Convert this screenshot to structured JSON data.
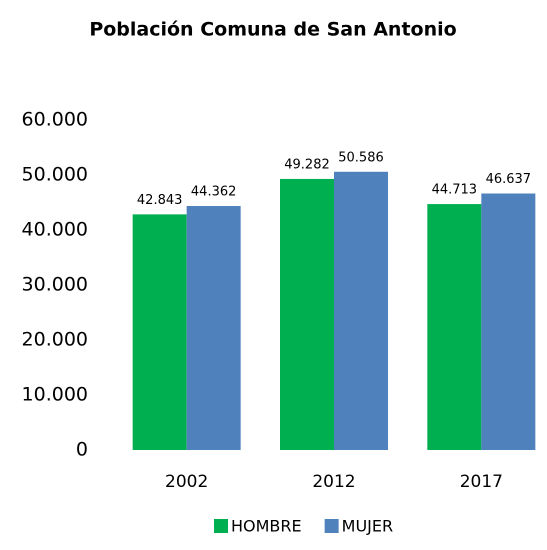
{
  "chart_data": {
    "type": "bar",
    "title": "Población Comuna de San Antonio",
    "categories": [
      "2002",
      "2012",
      "2017"
    ],
    "series": [
      {
        "name": "HOMBRE",
        "color": "#00b050",
        "values": [
          42843,
          49282,
          44713
        ],
        "value_labels": [
          "42.843",
          "49.282",
          "44.713"
        ]
      },
      {
        "name": "MUJER",
        "color": "#4f81bd",
        "values": [
          44362,
          50586,
          46637
        ],
        "value_labels": [
          "44.362",
          "50.586",
          "46.637"
        ]
      }
    ],
    "ylim": [
      0,
      60000
    ],
    "yticks": [
      0,
      {
        "value": 10000,
        "label": "10.000"
      },
      {
        "value": 20000,
        "label": "20.000"
      },
      {
        "value": 30000,
        "label": "30.000"
      },
      {
        "value": 40000,
        "label": "40.000"
      },
      {
        "value": 50000,
        "label": "50.000"
      },
      {
        "value": 60000,
        "label": "60.000"
      }
    ],
    "grid": false,
    "legend": "bottom"
  }
}
